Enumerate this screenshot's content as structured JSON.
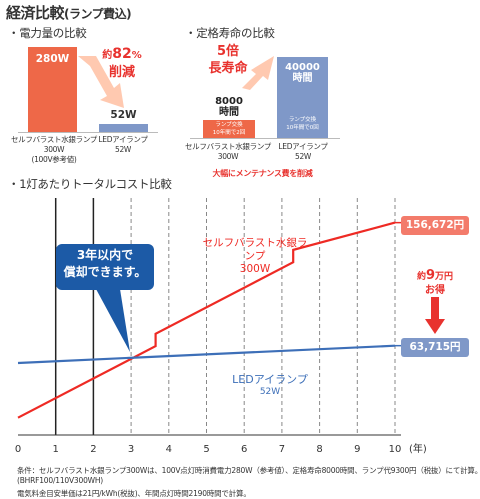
{
  "header": {
    "title": "経済比較",
    "title_sub": "(ランプ費込)"
  },
  "power": {
    "heading": "・電力量の比較",
    "bar_a_value_label": "280W",
    "bar_b_value_label": "52W",
    "reduction_prefix": "約",
    "reduction_value": "82",
    "reduction_unit": "%",
    "reduction_word": "削減",
    "cat_a_line1": "セルフバラスト水銀ランプ",
    "cat_a_line2": "300W",
    "cat_a_line3": "(100V参考値)",
    "cat_b_line1": "LEDアイランプ",
    "cat_b_line2": "52W",
    "colors": {
      "bar_a": "#ee6848",
      "bar_b": "#7f98c8",
      "accent": "#e8322e"
    }
  },
  "lifetime": {
    "heading": "・定格寿命の比較",
    "ratio_text": "5倍",
    "ratio_word": "長寿命",
    "bar_a_line1": "8000",
    "bar_a_line2": "時間",
    "bar_b_line1": "40000",
    "bar_b_line2": "時間",
    "bar_a_inner1": "ランプ交換",
    "bar_a_inner2": "10年間で2回",
    "bar_b_inner1": "ランプ交換",
    "bar_b_inner2": "10年間で0回",
    "cat_a_line1": "セルフバラスト水銀ランプ",
    "cat_a_line2": "300W",
    "cat_b_line1": "LEDアイランプ",
    "cat_b_line2": "52W",
    "footer": "大幅にメンテナンス費を削減"
  },
  "total": {
    "heading": "・1灯あたりトータルコスト比較",
    "callout_line1": "3年以内で",
    "callout_line2": "償却できます。",
    "saving_prefix": "約",
    "saving_value": "9",
    "saving_unit": "万円",
    "saving_word": "お得"
  },
  "chart_data": {
    "type": "line",
    "xlabel": "(年)",
    "x_ticks": [
      "0",
      "1",
      "2",
      "3",
      "4",
      "5",
      "6",
      "7",
      "8",
      "9",
      "10"
    ],
    "xlim": [
      0,
      10
    ],
    "ylim": [
      0,
      170000
    ],
    "grid": true,
    "series": [
      {
        "name": "セルフバラスト水銀ランプ 300W",
        "name_line1": "セルフバラスト水銀ランプ",
        "name_line2": "300W",
        "color": "#ee2a24",
        "x": [
          0,
          3.65,
          3.65,
          7.3,
          7.3,
          10
        ],
        "y": [
          9300,
          63400,
          72700,
          126800,
          136100,
          156672
        ],
        "end_label": "156,672円"
      },
      {
        "name": "LEDアイランプ 52W",
        "name_line1": "LEDアイランプ",
        "name_line2": "52W",
        "color": "#3d6fb8",
        "x": [
          0,
          10
        ],
        "y": [
          50600,
          63715
        ],
        "end_label": "63,715円"
      }
    ]
  },
  "footnote": {
    "line1": "条件：セルフバラスト水銀ランプ300Wは、100V点灯時消費電力280W（参考値）、定格寿命8000時間、ランプ代9300円（税抜）にて計算。",
    "line2": "(BHRF100/110V300WH)",
    "line3": "電気料金目安単価は21円/kWh(税抜)、年間点灯時間2190時間で計算。"
  }
}
